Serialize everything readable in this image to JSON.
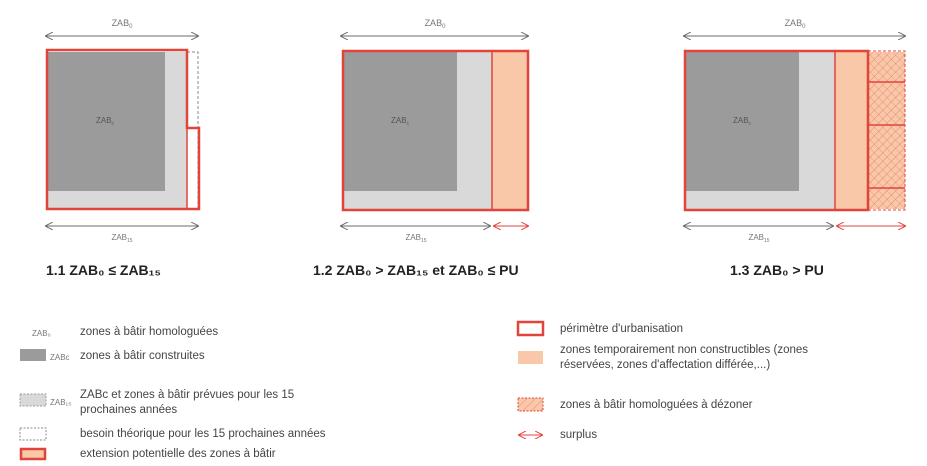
{
  "diagrams": [
    {
      "top_label": "ZAB",
      "top_sub": "0",
      "inner_label": "ZAB",
      "inner_sub": "c",
      "bottom_label": "ZAB",
      "bottom_sub": "15",
      "caption": "1.1  ZAB₀ ≤ ZAB₁₅"
    },
    {
      "top_label": "ZAB",
      "top_sub": "0",
      "inner_label": "ZAB",
      "inner_sub": "c",
      "bottom_label": "ZAB",
      "bottom_sub": "15",
      "caption": "1.2  ZAB₀ > ZAB₁₅ et ZAB₀ ≤ PU"
    },
    {
      "top_label": "ZAB",
      "top_sub": "0",
      "inner_label": "ZAB",
      "inner_sub": "c",
      "bottom_label": "ZAB",
      "bottom_sub": "15",
      "caption": "1.3  ZAB₀ > PU"
    }
  ],
  "legend_left": [
    {
      "symbol": "none",
      "abbr": "ZAB₀",
      "text": "zones à bâtir homologuées"
    },
    {
      "symbol": "dark-grey-fill",
      "abbr": "ZABc",
      "text": "zones à bâtir construites"
    },
    {
      "symbol": "light-grey-dashed",
      "abbr": "ZAB₁₅",
      "text": "ZABc et zones à bâtir prévues pour les 15",
      "text2": "prochaines années"
    },
    {
      "symbol": "dashed-outline",
      "abbr": "",
      "text": "besoin théorique pour les 15 prochaines années"
    },
    {
      "symbol": "red-outline-peach",
      "abbr": "",
      "text": "extension potentielle des zones à bâtir"
    }
  ],
  "legend_right": [
    {
      "symbol": "red-outline",
      "text": "périmètre d'urbanisation"
    },
    {
      "symbol": "peach-fill",
      "text": "zones temporairement non constructibles (zones",
      "text2": "réservées, zones d'affectation différée,...)"
    },
    {
      "symbol": "hatched-peach",
      "text": "zones à bâtir homologuées à dézoner"
    },
    {
      "symbol": "double-arrow-red",
      "text": "surplus"
    }
  ],
  "colors": {
    "red": "#e0443a",
    "dark_grey": "#9b9b9b",
    "light_grey": "#d9d9d9",
    "peach": "#f8c8a8",
    "arrow_grey": "#6b6b6b"
  }
}
